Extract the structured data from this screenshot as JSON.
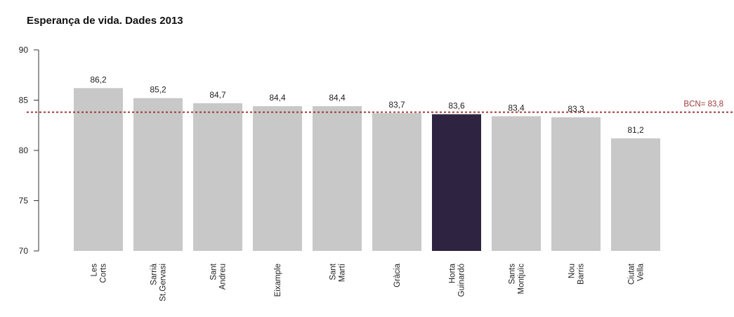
{
  "chart_data": {
    "type": "bar",
    "title": "Esperança de vida. Dades 2013",
    "categories": [
      [
        "Les",
        "Corts"
      ],
      [
        "Sarrià",
        "St.Gervasi"
      ],
      [
        "Sant",
        "Andreu"
      ],
      [
        "Eixample"
      ],
      [
        "Sant",
        "Martí"
      ],
      [
        "Gràcia"
      ],
      [
        "Horta",
        "Guinardó"
      ],
      [
        "Sants",
        "Montjuïc"
      ],
      [
        "Nou",
        "Barris"
      ],
      [
        "Ciutat",
        "Vella"
      ]
    ],
    "values": [
      86.2,
      85.2,
      84.7,
      84.4,
      84.4,
      83.7,
      83.6,
      83.4,
      83.3,
      81.2
    ],
    "value_labels": [
      "86,2",
      "85,2",
      "84,7",
      "84,4",
      "84,4",
      "83,7",
      "83,6",
      "83,4",
      "83,3",
      "81,2"
    ],
    "highlight_index": 6,
    "ylim": [
      70,
      90
    ],
    "yticks": [
      70,
      75,
      80,
      85,
      90
    ],
    "xlabel": "",
    "ylabel": "",
    "reference_line": {
      "value": 83.8,
      "label": "BCN= 83,8"
    },
    "colors": {
      "bar": "#c8c8c8",
      "highlight": "#2e2442",
      "reference": "#9e3a3a",
      "axis": "#333333"
    }
  }
}
